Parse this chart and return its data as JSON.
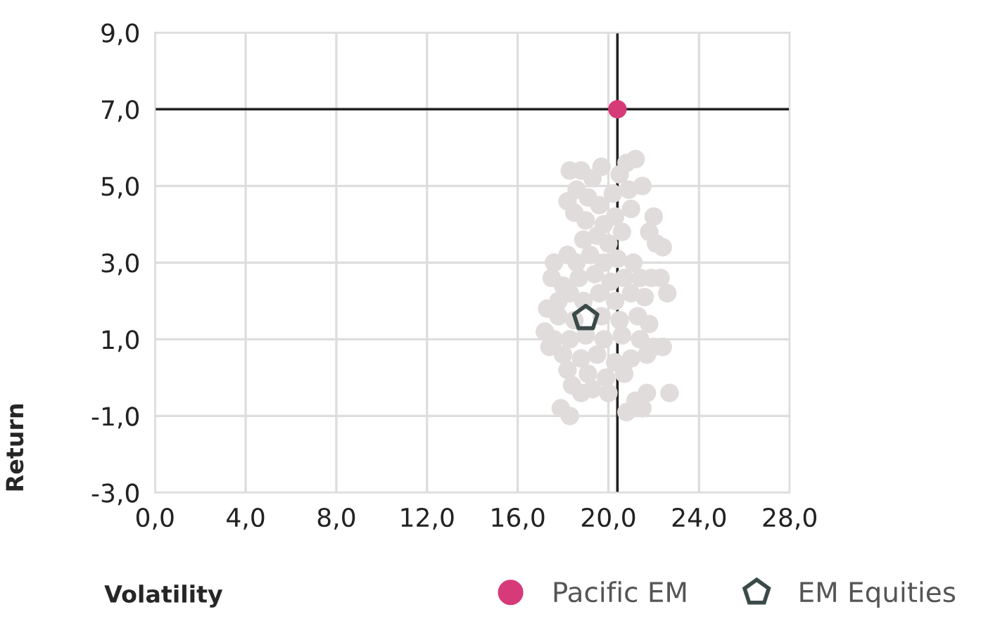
{
  "chart_data": {
    "type": "scatter",
    "xlabel": "Volatility",
    "ylabel": "Return",
    "xlim": [
      0,
      28
    ],
    "ylim": [
      -3,
      9
    ],
    "xticks": [
      {
        "value": 0,
        "label": "0,0"
      },
      {
        "value": 4,
        "label": "4,0"
      },
      {
        "value": 8,
        "label": "8,0"
      },
      {
        "value": 12,
        "label": "12,0"
      },
      {
        "value": 16,
        "label": "16,0"
      },
      {
        "value": 20,
        "label": "20,0"
      },
      {
        "value": 24,
        "label": "24,0"
      },
      {
        "value": 28,
        "label": "28,0"
      }
    ],
    "yticks": [
      {
        "value": -3,
        "label": "-3,0"
      },
      {
        "value": -1,
        "label": "-1,0"
      },
      {
        "value": 1,
        "label": "1,0"
      },
      {
        "value": 3,
        "label": "3,0"
      },
      {
        "value": 5,
        "label": "5,0"
      },
      {
        "value": 7,
        "label": "7,0"
      },
      {
        "value": 9,
        "label": "9,0"
      }
    ],
    "grid": true,
    "legend": "bottom right",
    "ref_lines": [
      {
        "axis": "x",
        "value": 20.4,
        "color": "#222222"
      },
      {
        "axis": "y",
        "value": 7.0,
        "color": "#222222"
      }
    ],
    "series": [
      {
        "color": "#e0dcdb",
        "marker": "circle",
        "x": [
          18.3,
          18.8,
          19.7,
          20.8,
          21.2,
          21.5,
          20.9,
          18.2,
          18.6,
          19.1,
          19.6,
          20.2,
          20.5,
          19.3,
          18.5,
          19.0,
          19.8,
          20.3,
          21.0,
          22.0,
          21.8,
          22.1,
          22.4,
          18.9,
          19.5,
          20.0,
          20.6,
          18.2,
          17.6,
          18.6,
          19.2,
          19.8,
          20.4,
          21.1,
          17.5,
          18.0,
          18.7,
          19.4,
          20.1,
          20.7,
          21.4,
          21.9,
          22.3,
          22.6,
          21.6,
          21.0,
          20.3,
          19.6,
          18.9,
          18.3,
          17.8,
          17.3,
          17.8,
          18.5,
          19.7,
          20.5,
          21.3,
          21.8,
          17.2,
          17.6,
          18.3,
          19.0,
          19.8,
          20.6,
          21.4,
          22.0,
          22.4,
          17.4,
          18.0,
          18.8,
          19.5,
          20.3,
          21.0,
          21.7,
          18.2,
          19.1,
          19.9,
          20.7,
          18.4,
          19.3,
          20.0,
          18.8,
          21.7,
          21.2,
          22.7,
          17.9,
          18.3,
          20.8,
          21.5
        ],
        "values": [
          5.4,
          5.4,
          5.5,
          5.6,
          5.7,
          5.0,
          4.9,
          4.6,
          4.9,
          4.7,
          4.5,
          4.8,
          5.3,
          5.2,
          4.3,
          4.1,
          4.0,
          4.2,
          4.4,
          4.2,
          3.8,
          3.5,
          3.4,
          3.6,
          3.7,
          3.5,
          3.8,
          3.2,
          3.0,
          3.0,
          3.2,
          3.0,
          3.1,
          3.0,
          2.6,
          2.4,
          2.6,
          2.7,
          2.5,
          2.6,
          2.6,
          2.6,
          2.6,
          2.2,
          2.1,
          2.2,
          2.0,
          2.2,
          2.0,
          2.2,
          2.0,
          1.8,
          1.6,
          1.5,
          1.6,
          1.5,
          1.6,
          1.4,
          1.2,
          1.0,
          1.0,
          1.1,
          1.0,
          1.1,
          1.0,
          0.8,
          0.8,
          0.8,
          0.6,
          0.5,
          0.6,
          0.4,
          0.5,
          0.6,
          0.2,
          0.1,
          0.0,
          0.1,
          -0.2,
          -0.3,
          -0.4,
          -0.4,
          -0.4,
          -0.6,
          -0.4,
          -0.8,
          -1.0,
          -0.9,
          -0.8
        ]
      },
      {
        "name": "Pacific EM",
        "color": "#d63a78",
        "marker": "circle",
        "x": [
          20.4
        ],
        "values": [
          7.0
        ]
      },
      {
        "name": "EM Equities",
        "color": "#3a4a48",
        "x": [
          19.0
        ],
        "values": [
          1.55
        ]
      }
    ]
  }
}
